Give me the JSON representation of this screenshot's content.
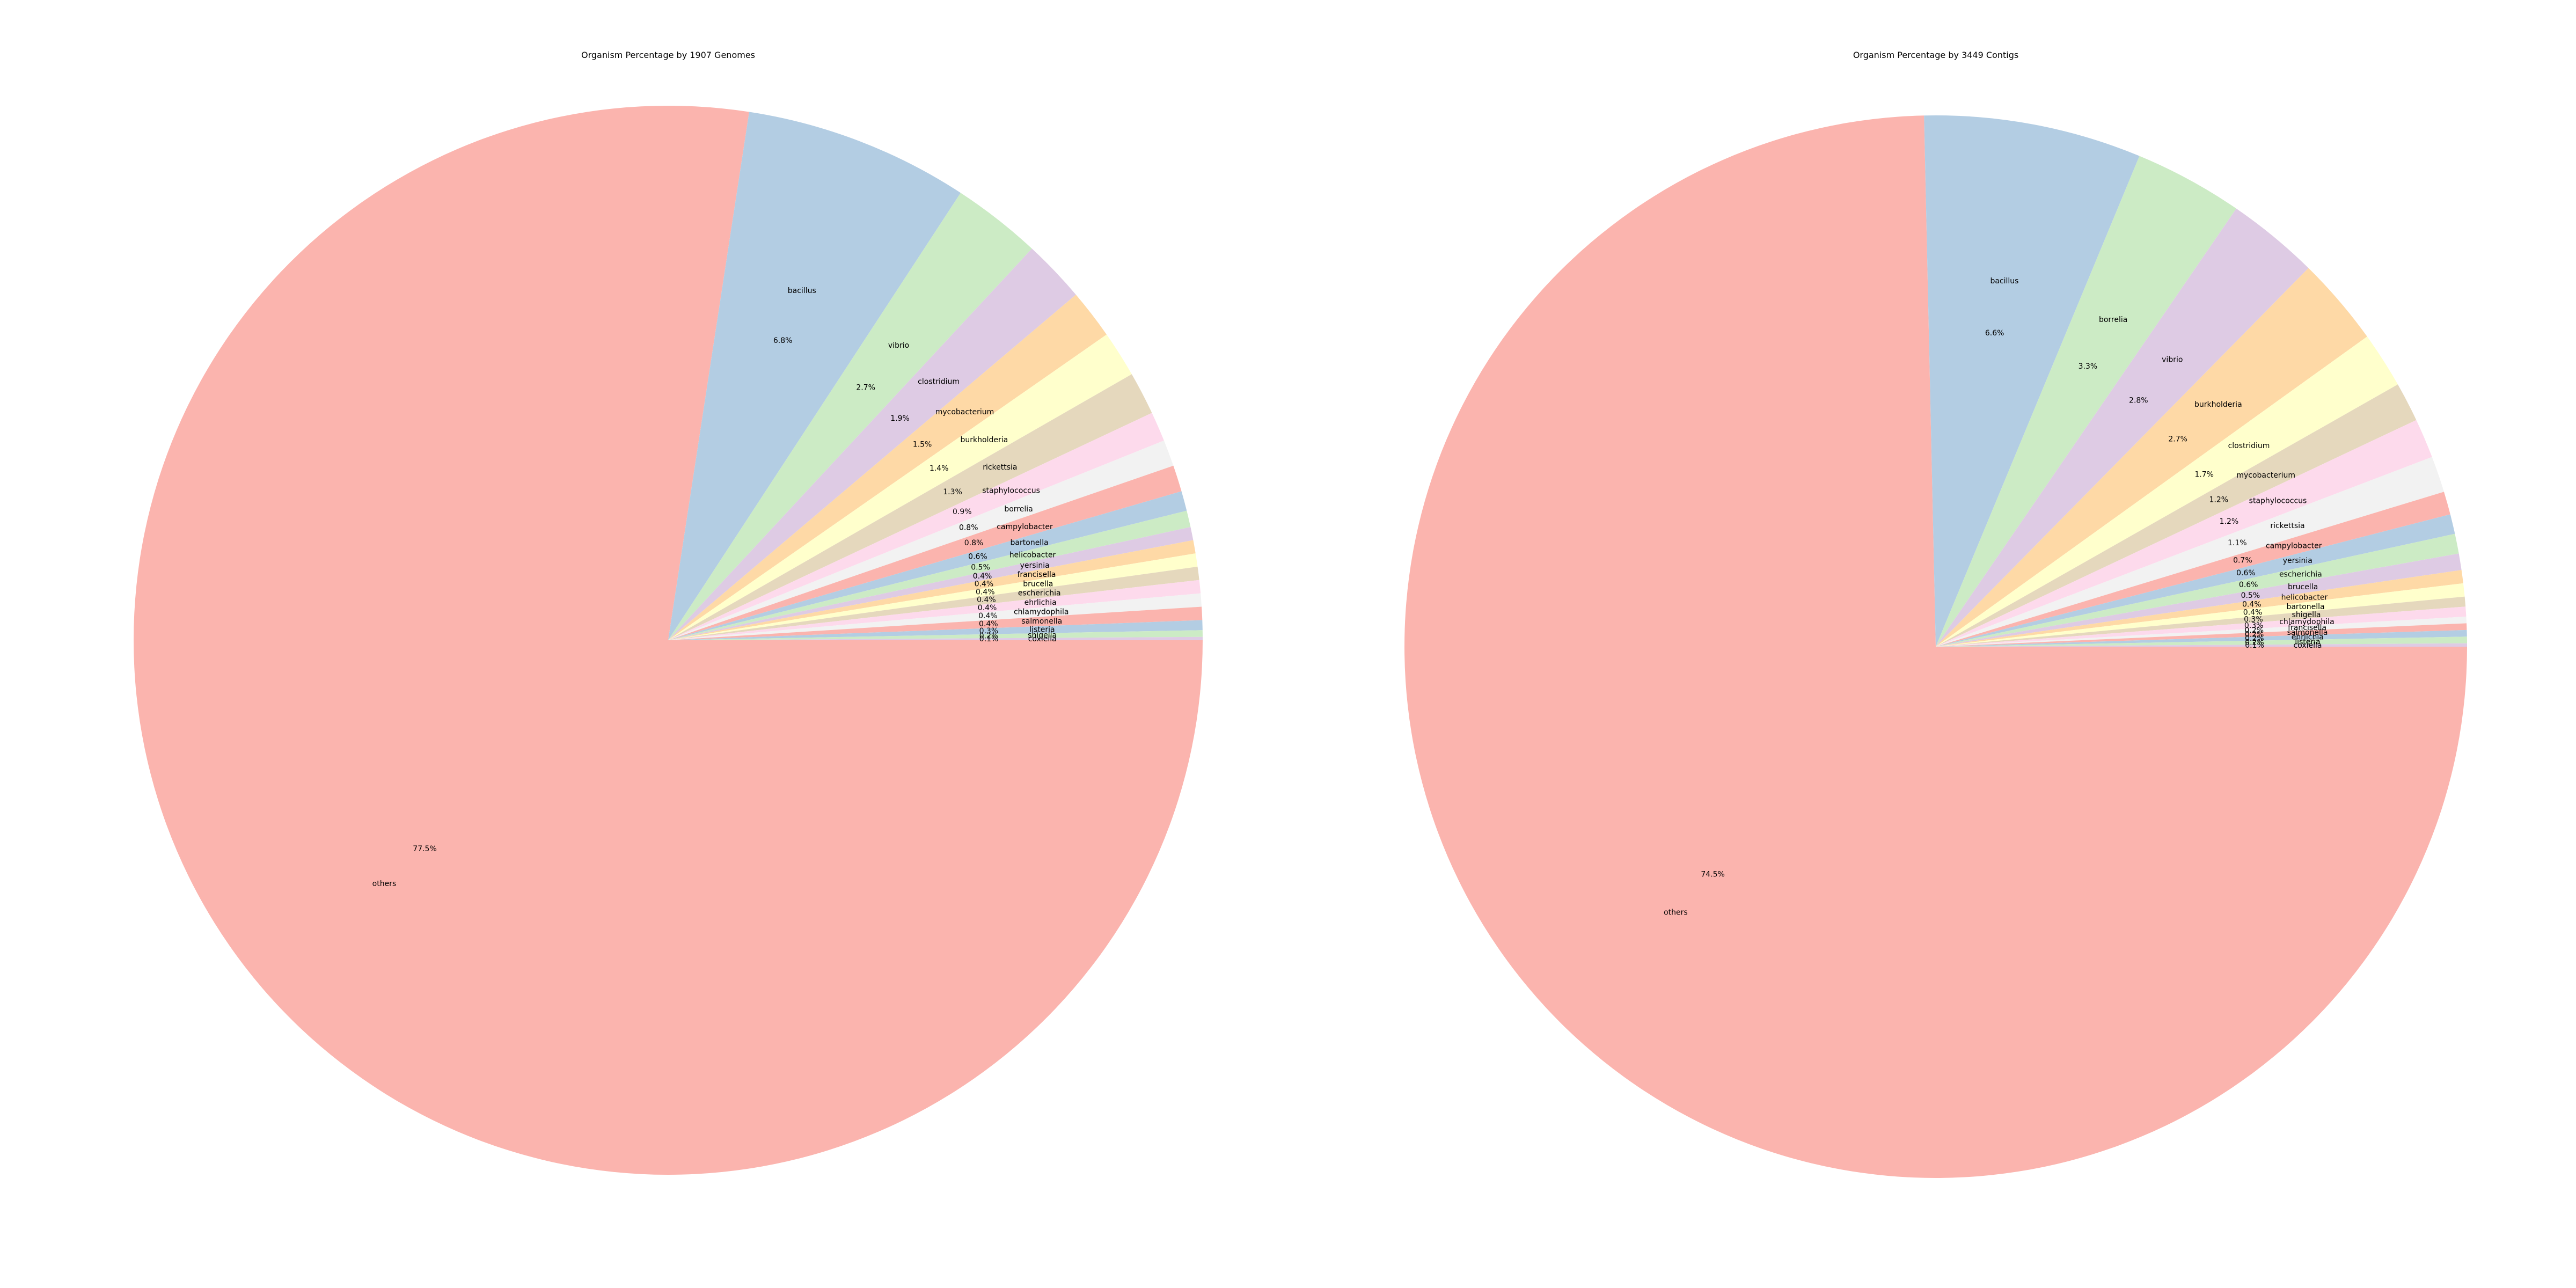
{
  "palette": [
    "#fbb4ae",
    "#b3cde3",
    "#ccebc5",
    "#decbe4",
    "#fed9a6",
    "#ffffcc",
    "#e5d8bd",
    "#fddaec",
    "#f2f2f2"
  ],
  "chart_data": [
    {
      "type": "pie",
      "title": "Organism Percentage by 1907 Genomes",
      "start_angle_deg": 0,
      "direction": "clockwise",
      "slices": [
        {
          "label": "others",
          "value": 77.5,
          "pct_label": "77.5%"
        },
        {
          "label": "bacillus",
          "value": 6.8,
          "pct_label": "6.8%"
        },
        {
          "label": "vibrio",
          "value": 2.7,
          "pct_label": "2.7%"
        },
        {
          "label": "clostridium",
          "value": 1.9,
          "pct_label": "1.9%"
        },
        {
          "label": "mycobacterium",
          "value": 1.5,
          "pct_label": "1.5%"
        },
        {
          "label": "burkholderia",
          "value": 1.4,
          "pct_label": "1.4%"
        },
        {
          "label": "rickettsia",
          "value": 1.3,
          "pct_label": "1.3%"
        },
        {
          "label": "staphylococcus",
          "value": 0.9,
          "pct_label": "0.9%"
        },
        {
          "label": "borrelia",
          "value": 0.8,
          "pct_label": "0.8%"
        },
        {
          "label": "campylobacter",
          "value": 0.8,
          "pct_label": "0.8%"
        },
        {
          "label": "bartonella",
          "value": 0.6,
          "pct_label": "0.6%"
        },
        {
          "label": "helicobacter",
          "value": 0.5,
          "pct_label": "0.5%"
        },
        {
          "label": "yersinia",
          "value": 0.4,
          "pct_label": "0.4%"
        },
        {
          "label": "francisella",
          "value": 0.4,
          "pct_label": "0.4%"
        },
        {
          "label": "brucella",
          "value": 0.4,
          "pct_label": "0.4%"
        },
        {
          "label": "escherichia",
          "value": 0.4,
          "pct_label": "0.4%"
        },
        {
          "label": "ehrlichia",
          "value": 0.4,
          "pct_label": "0.4%"
        },
        {
          "label": "chlamydophila",
          "value": 0.4,
          "pct_label": "0.4%"
        },
        {
          "label": "salmonella",
          "value": 0.4,
          "pct_label": "0.4%"
        },
        {
          "label": "listeria",
          "value": 0.3,
          "pct_label": "0.3%"
        },
        {
          "label": "shigella",
          "value": 0.2,
          "pct_label": "0.2%"
        },
        {
          "label": "coxiella",
          "value": 0.1,
          "pct_label": "0.1%"
        }
      ]
    },
    {
      "type": "pie",
      "title": "Organism Percentage by 3449 Contigs",
      "start_angle_deg": 0,
      "direction": "clockwise",
      "slices": [
        {
          "label": "others",
          "value": 74.5,
          "pct_label": "74.5%"
        },
        {
          "label": "bacillus",
          "value": 6.6,
          "pct_label": "6.6%"
        },
        {
          "label": "borrelia",
          "value": 3.3,
          "pct_label": "3.3%"
        },
        {
          "label": "vibrio",
          "value": 2.8,
          "pct_label": "2.8%"
        },
        {
          "label": "burkholderia",
          "value": 2.7,
          "pct_label": "2.7%"
        },
        {
          "label": "clostridium",
          "value": 1.7,
          "pct_label": "1.7%"
        },
        {
          "label": "mycobacterium",
          "value": 1.2,
          "pct_label": "1.2%"
        },
        {
          "label": "staphylococcus",
          "value": 1.2,
          "pct_label": "1.2%"
        },
        {
          "label": "rickettsia",
          "value": 1.1,
          "pct_label": "1.1%"
        },
        {
          "label": "campylobacter",
          "value": 0.7,
          "pct_label": "0.7%"
        },
        {
          "label": "yersinia",
          "value": 0.6,
          "pct_label": "0.6%"
        },
        {
          "label": "escherichia",
          "value": 0.6,
          "pct_label": "0.6%"
        },
        {
          "label": "brucella",
          "value": 0.5,
          "pct_label": "0.5%"
        },
        {
          "label": "helicobacter",
          "value": 0.4,
          "pct_label": "0.4%"
        },
        {
          "label": "bartonella",
          "value": 0.4,
          "pct_label": "0.4%"
        },
        {
          "label": "shigella",
          "value": 0.3,
          "pct_label": "0.3%"
        },
        {
          "label": "chlamydophila",
          "value": 0.3,
          "pct_label": "0.3%"
        },
        {
          "label": "francisella",
          "value": 0.2,
          "pct_label": "0.2%"
        },
        {
          "label": "salmonella",
          "value": 0.2,
          "pct_label": "0.2%"
        },
        {
          "label": "ehrlichia",
          "value": 0.2,
          "pct_label": "0.2%"
        },
        {
          "label": "listeria",
          "value": 0.2,
          "pct_label": "0.2%"
        },
        {
          "label": "coxiella",
          "value": 0.1,
          "pct_label": "0.1%"
        }
      ]
    }
  ]
}
